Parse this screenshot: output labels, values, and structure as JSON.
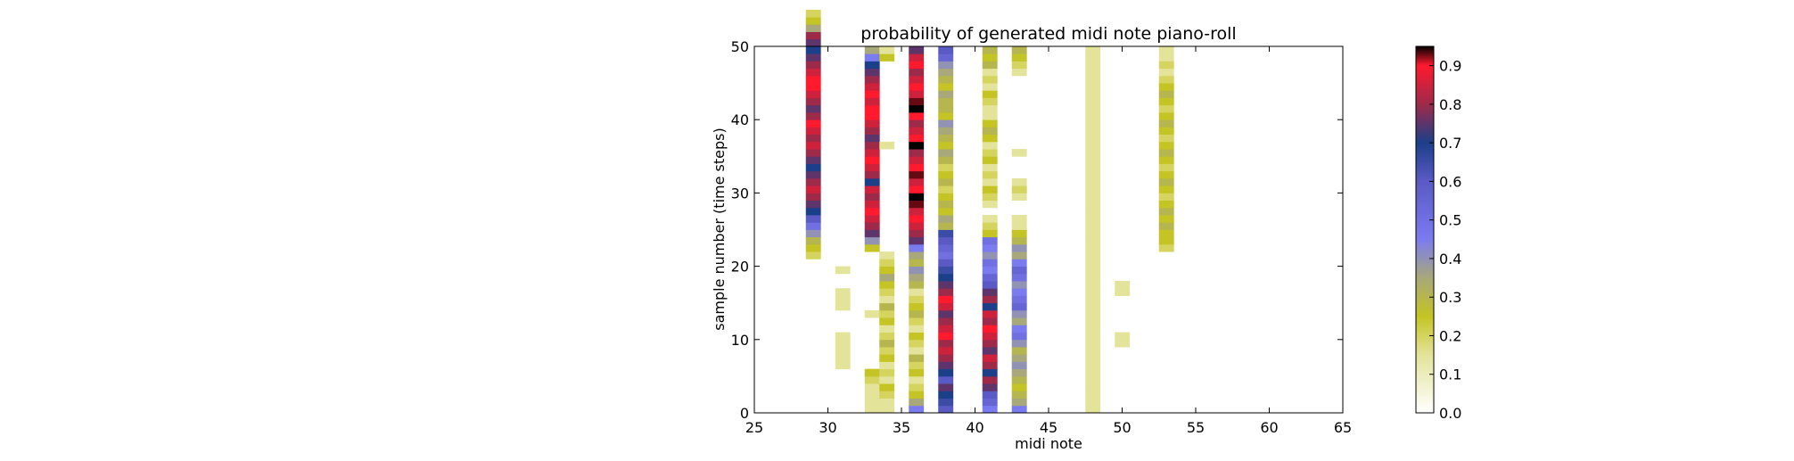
{
  "chart_data": {
    "type": "heatmap",
    "title": "probability of generated midi note piano-roll",
    "xlabel": "midi note",
    "ylabel": "sample number (time steps)",
    "xlim": [
      25,
      65
    ],
    "ylim": [
      0,
      50
    ],
    "x_ticks": [
      "25",
      "30",
      "35",
      "40",
      "45",
      "50",
      "55",
      "60",
      "65"
    ],
    "y_ticks": [
      "0",
      "10",
      "20",
      "30",
      "40",
      "50"
    ],
    "colorbar": {
      "min": 0.0,
      "max": 0.95,
      "ticks": [
        "0.0",
        "0.1",
        "0.2",
        "0.3",
        "0.4",
        "0.5",
        "0.6",
        "0.7",
        "0.8",
        "0.9"
      ]
    },
    "colormap": [
      {
        "v": 0.0,
        "c": "#ffffff"
      },
      {
        "v": 0.15,
        "c": "#e3e39a"
      },
      {
        "v": 0.25,
        "c": "#c4c424"
      },
      {
        "v": 0.35,
        "c": "#a8a87a"
      },
      {
        "v": 0.45,
        "c": "#7b7bf0"
      },
      {
        "v": 0.6,
        "c": "#5a5ac4"
      },
      {
        "v": 0.7,
        "c": "#1c3f8a"
      },
      {
        "v": 0.8,
        "c": "#9e2a4a"
      },
      {
        "v": 0.9,
        "c": "#ff1a2e"
      },
      {
        "v": 0.95,
        "c": "#000000"
      }
    ],
    "columns": [
      {
        "note": 29,
        "start": 21,
        "values": [
          0.2,
          0.25,
          0.3,
          0.4,
          0.5,
          0.6,
          0.7,
          0.75,
          0.8,
          0.85,
          0.8,
          0.75,
          0.7,
          0.75,
          0.8,
          0.85,
          0.8,
          0.85,
          0.9,
          0.8,
          0.75,
          0.8,
          0.85,
          0.9,
          0.9,
          0.85,
          0.8,
          0.75,
          0.7,
          0.75,
          0.8,
          0.35,
          0.25,
          0.2
        ]
      },
      {
        "note": 31,
        "start": 6,
        "values": [
          0.15,
          0.15,
          0.15,
          0.15,
          0.15,
          0,
          0,
          0,
          0.15,
          0.15,
          0.15,
          0,
          0,
          0.15
        ]
      },
      {
        "note": 33,
        "start": 0,
        "values": [
          0.15,
          0.15,
          0.15,
          0.15,
          0.2,
          0.25,
          0,
          0,
          0,
          0,
          0,
          0,
          0,
          0.15,
          0,
          0,
          0,
          0,
          0,
          0,
          0,
          0,
          0.25,
          0.4,
          0.75,
          0.8,
          0.85,
          0.9,
          0.85,
          0.8,
          0.85,
          0.7,
          0.8,
          0.85,
          0.9,
          0.85,
          0.8,
          0.75,
          0.8,
          0.85,
          0.9,
          0.9,
          0.85,
          0.9,
          0.85,
          0.8,
          0.75,
          0.7,
          0.45,
          0.35
        ]
      },
      {
        "note": 34,
        "start": 0,
        "values": [
          0.15,
          0.15,
          0.2,
          0.25,
          0.15,
          0.2,
          0.15,
          0.25,
          0.2,
          0.3,
          0.2,
          0.15,
          0.25,
          0.2,
          0.3,
          0.15,
          0.2,
          0.25,
          0.35,
          0.25,
          0.2,
          0.15,
          0,
          0,
          0,
          0,
          0,
          0,
          0,
          0,
          0,
          0,
          0,
          0,
          0,
          0,
          0.15,
          0,
          0,
          0,
          0,
          0,
          0,
          0,
          0,
          0,
          0,
          0,
          0.25,
          0.15
        ]
      },
      {
        "note": 36,
        "start": 0,
        "values": [
          0.45,
          0.35,
          0.25,
          0.2,
          0.15,
          0.25,
          0.2,
          0.3,
          0.15,
          0.2,
          0.25,
          0.15,
          0.2,
          0.3,
          0.25,
          0.2,
          0.15,
          0.3,
          0.35,
          0.4,
          0.3,
          0.35,
          0.45,
          0.75,
          0.8,
          0.85,
          0.9,
          0.85,
          0.93,
          0.95,
          0.9,
          0.85,
          0.93,
          0.9,
          0.85,
          0.8,
          0.95,
          0.9,
          0.85,
          0.8,
          0.9,
          0.95,
          0.93,
          0.85,
          0.9,
          0.85,
          0.8,
          0.9,
          0.85,
          0.75
        ]
      },
      {
        "note": 38,
        "start": 0,
        "values": [
          0.6,
          0.65,
          0.7,
          0.75,
          0.6,
          0.7,
          0.75,
          0.8,
          0.85,
          0.8,
          0.9,
          0.85,
          0.8,
          0.75,
          0.85,
          0.9,
          0.8,
          0.75,
          0.7,
          0.65,
          0.6,
          0.5,
          0.55,
          0.6,
          0.65,
          0.3,
          0.35,
          0.25,
          0.3,
          0.25,
          0.2,
          0.3,
          0.25,
          0.2,
          0.3,
          0.35,
          0.25,
          0.3,
          0.35,
          0.4,
          0.25,
          0.3,
          0.3,
          0.35,
          0.25,
          0.3,
          0.35,
          0.4,
          0.55,
          0.6
        ]
      },
      {
        "note": 41,
        "start": 0,
        "values": [
          0.45,
          0.55,
          0.6,
          0.75,
          0.8,
          0.7,
          0.8,
          0.85,
          0.75,
          0.8,
          0.85,
          0.9,
          0.8,
          0.85,
          0.7,
          0.8,
          0.75,
          0.6,
          0.55,
          0.45,
          0.5,
          0.4,
          0.45,
          0.5,
          0.25,
          0.2,
          0.15,
          0,
          0.15,
          0.2,
          0.25,
          0.15,
          0.2,
          0.15,
          0.25,
          0.2,
          0.15,
          0.25,
          0.3,
          0.25,
          0.15,
          0.15,
          0.2,
          0.25,
          0.15,
          0.2,
          0.15,
          0.3,
          0.25,
          0.3
        ]
      },
      {
        "note": 43,
        "start": 0,
        "values": [
          0.45,
          0.35,
          0.3,
          0.25,
          0.3,
          0.35,
          0.4,
          0.35,
          0.3,
          0.4,
          0.5,
          0.45,
          0.35,
          0.4,
          0.55,
          0.5,
          0.45,
          0.4,
          0.5,
          0.55,
          0.45,
          0.35,
          0.4,
          0.3,
          0.25,
          0.15,
          0.15,
          0,
          0,
          0.15,
          0.2,
          0.15,
          0,
          0,
          0,
          0.15,
          0,
          0,
          0,
          0,
          0,
          0,
          0,
          0,
          0,
          0,
          0.15,
          0.2,
          0.25,
          0.3
        ]
      },
      {
        "note": 48,
        "start": 0,
        "values": [
          0.15,
          0.15,
          0.15,
          0.15,
          0.15,
          0.15,
          0.15,
          0.15,
          0.15,
          0.15,
          0.15,
          0.15,
          0.15,
          0.15,
          0.15,
          0.15,
          0.15,
          0.15,
          0.15,
          0.15,
          0.15,
          0.15,
          0.15,
          0.15,
          0.15,
          0.15,
          0.15,
          0.15,
          0.15,
          0.15,
          0.15,
          0.15,
          0.15,
          0.15,
          0.15,
          0.15,
          0.15,
          0.15,
          0.15,
          0.15,
          0.15,
          0.15,
          0.15,
          0.15,
          0.15,
          0.15,
          0.15,
          0.15,
          0.15,
          0.15
        ]
      },
      {
        "note": 50,
        "start": 9,
        "values": [
          0.15,
          0.15,
          0,
          0,
          0,
          0,
          0,
          0.15,
          0.15
        ]
      },
      {
        "note": 53,
        "start": 22,
        "values": [
          0.2,
          0.25,
          0.25,
          0.3,
          0.25,
          0.3,
          0.25,
          0.2,
          0.25,
          0.3,
          0.25,
          0.2,
          0.25,
          0.3,
          0.25,
          0.2,
          0.25,
          0.3,
          0.25,
          0.2,
          0.25,
          0.3,
          0.25,
          0.2,
          0.15,
          0.2,
          0.15,
          0.15
        ]
      }
    ]
  }
}
